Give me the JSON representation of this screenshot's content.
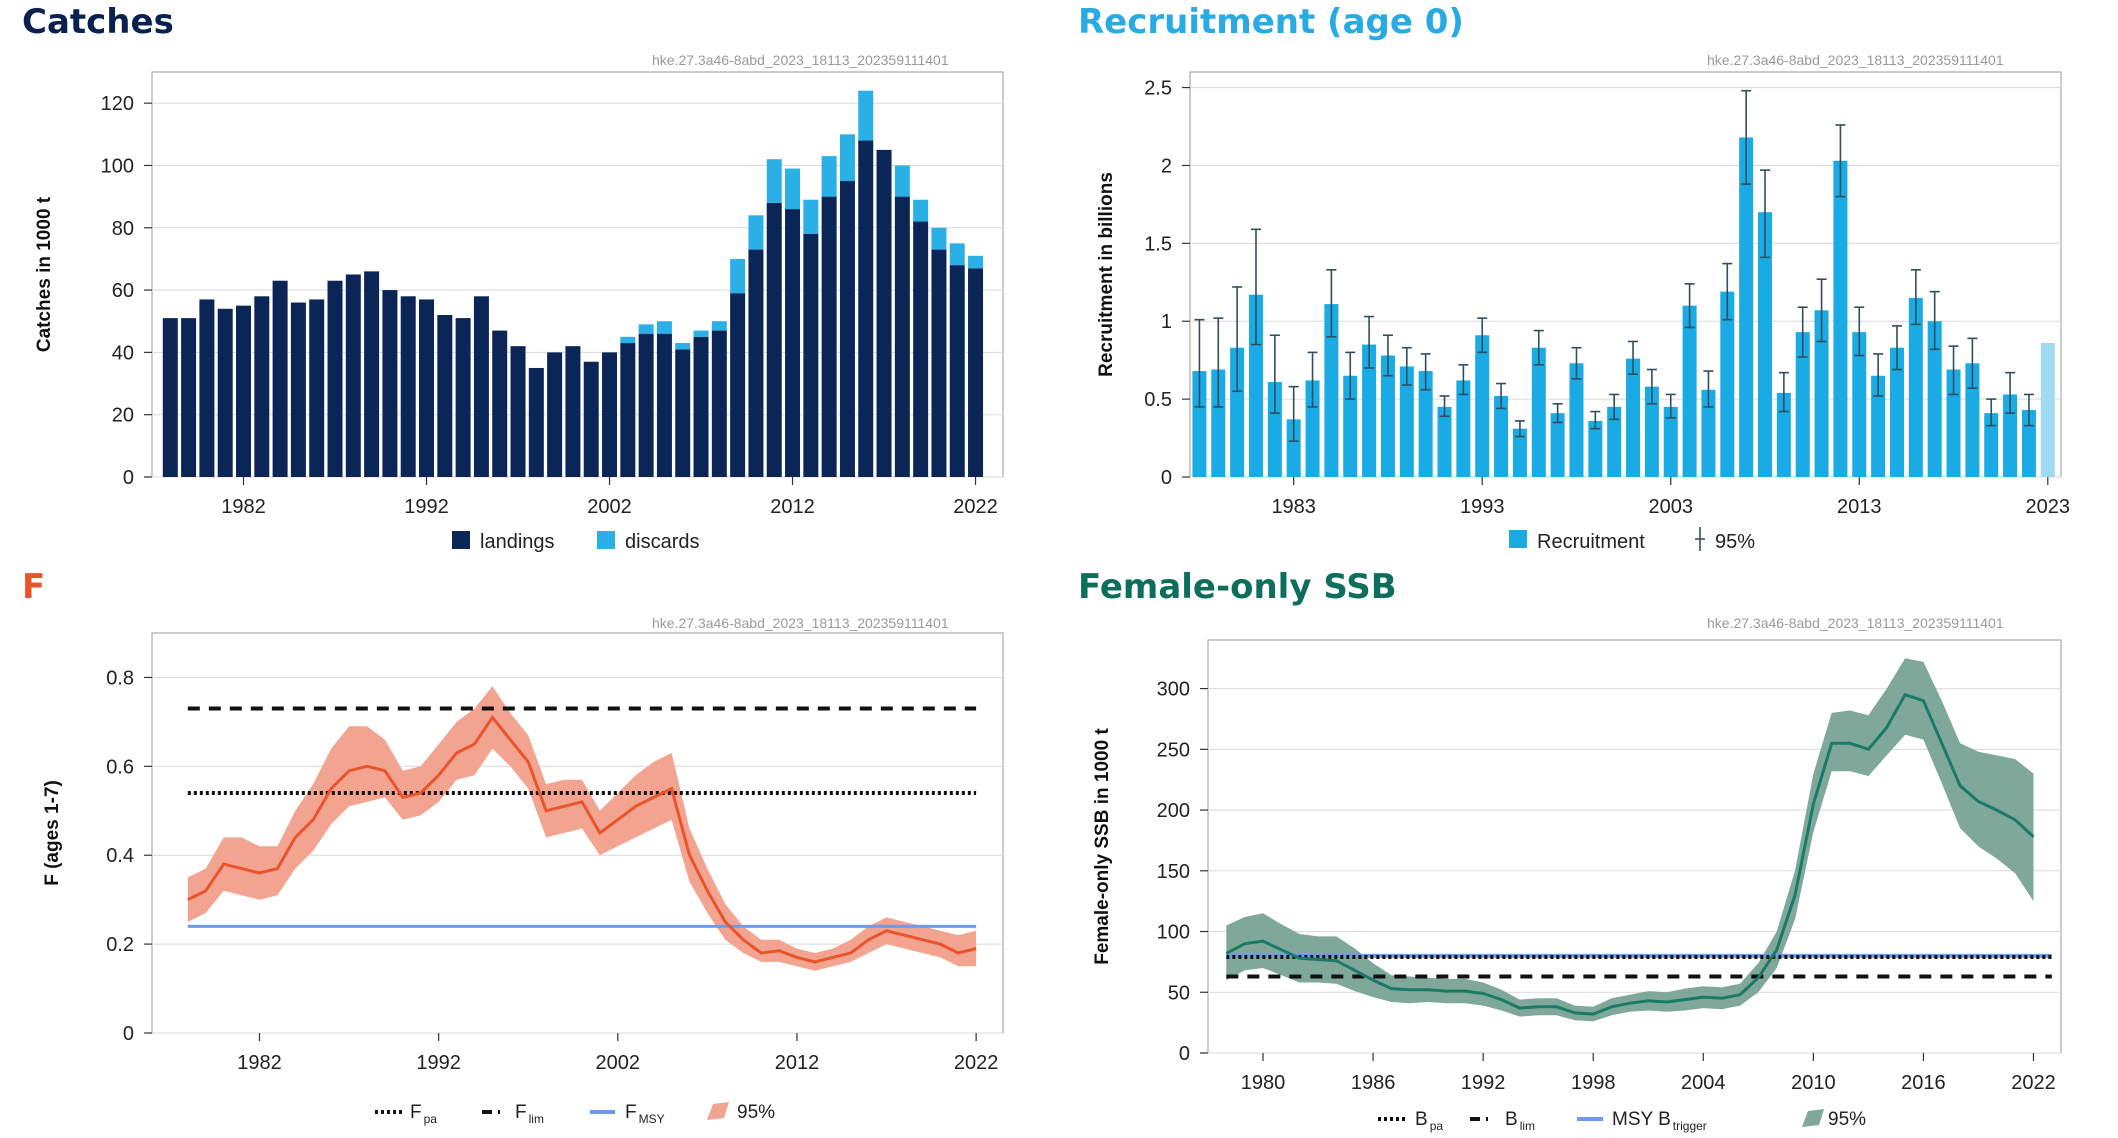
{
  "colors": {
    "catches_title": "#0a2150",
    "recruit_title": "#2aaae2",
    "f_title": "#e8542c",
    "ssb_title": "#0d6e5e",
    "landings": "#0b2556",
    "discards": "#2ab0e6",
    "recruit_bar": "#1aaae4",
    "recruit_last": "#9fd9f2",
    "f_line": "#e8542c",
    "f_band": "#f2a490",
    "ssb_line": "#1a7a66",
    "ssb_band": "#7fa89a",
    "msy": "#6e9be8",
    "ref_black": "#111111"
  },
  "chart_data": [
    {
      "id": "catches",
      "type": "bar",
      "title": "Catches",
      "code": "hke.27.3a46-8abd_2023_18113_202359111401",
      "ylabel": "Catches in 1000 t",
      "ylim": [
        0,
        130
      ],
      "xlim": [
        1977,
        2023.5
      ],
      "yticks": [
        0,
        20,
        40,
        60,
        80,
        100,
        120
      ],
      "xticks": [
        1982,
        1992,
        2002,
        2012,
        2022
      ],
      "years": [
        1978,
        1979,
        1980,
        1981,
        1982,
        1983,
        1984,
        1985,
        1986,
        1987,
        1988,
        1989,
        1990,
        1991,
        1992,
        1993,
        1994,
        1995,
        1996,
        1997,
        1998,
        1999,
        2000,
        2001,
        2002,
        2003,
        2004,
        2005,
        2006,
        2007,
        2008,
        2009,
        2010,
        2011,
        2012,
        2013,
        2014,
        2015,
        2016,
        2017,
        2018,
        2019,
        2020,
        2021,
        2022
      ],
      "series": [
        {
          "name": "landings",
          "values": [
            51,
            51,
            57,
            54,
            55,
            58,
            63,
            56,
            57,
            63,
            65,
            66,
            60,
            58,
            57,
            52,
            51,
            58,
            47,
            42,
            35,
            40,
            42,
            37,
            40,
            43,
            46,
            46,
            41,
            45,
            47,
            59,
            73,
            88,
            86,
            78,
            90,
            95,
            108,
            105,
            90,
            82,
            73,
            68,
            67
          ]
        },
        {
          "name": "discards",
          "values": [
            0,
            0,
            0,
            0,
            0,
            0,
            0,
            0,
            0,
            0,
            0,
            0,
            0,
            0,
            0,
            0,
            0,
            0,
            0,
            0,
            0,
            0,
            0,
            0,
            0,
            2,
            3,
            4,
            2,
            2,
            3,
            11,
            11,
            14,
            13,
            11,
            13,
            15,
            16,
            0,
            10,
            7,
            7,
            7,
            4
          ]
        }
      ],
      "legend": [
        {
          "label": "landings"
        },
        {
          "label": "discards"
        }
      ]
    },
    {
      "id": "recruitment",
      "type": "bar",
      "title": "Recruitment (age 0)",
      "code": "hke.27.3a46-8abd_2023_18113_202359111401",
      "ylabel": "Recruitment in billions",
      "ylim": [
        0,
        2.6
      ],
      "xlim": [
        1977.5,
        2023.7
      ],
      "yticks": [
        0,
        0.5,
        1,
        1.5,
        2,
        2.5
      ],
      "ytick_labels": [
        "0",
        "0.5",
        "1",
        "1.5",
        "2",
        "2.5"
      ],
      "xticks": [
        1983,
        1993,
        2003,
        2013,
        2023
      ],
      "years": [
        1978,
        1979,
        1980,
        1981,
        1982,
        1983,
        1984,
        1985,
        1986,
        1987,
        1988,
        1989,
        1990,
        1991,
        1992,
        1993,
        1994,
        1995,
        1996,
        1997,
        1998,
        1999,
        2000,
        2001,
        2002,
        2003,
        2004,
        2005,
        2006,
        2007,
        2008,
        2009,
        2010,
        2011,
        2012,
        2013,
        2014,
        2015,
        2016,
        2017,
        2018,
        2019,
        2020,
        2021,
        2022,
        2023
      ],
      "values": [
        0.68,
        0.69,
        0.83,
        1.17,
        0.61,
        0.37,
        0.62,
        1.11,
        0.65,
        0.85,
        0.78,
        0.71,
        0.68,
        0.45,
        0.62,
        0.91,
        0.52,
        0.31,
        0.83,
        0.41,
        0.73,
        0.36,
        0.45,
        0.76,
        0.58,
        0.45,
        1.1,
        0.56,
        1.19,
        2.18,
        1.7,
        0.54,
        0.93,
        1.07,
        2.03,
        0.93,
        0.65,
        0.83,
        1.15,
        1.0,
        0.69,
        0.73,
        0.41,
        0.53,
        0.43,
        0.86
      ],
      "lower": [
        0.45,
        0.45,
        0.55,
        0.85,
        0.41,
        0.23,
        0.45,
        0.9,
        0.5,
        0.7,
        0.65,
        0.59,
        0.56,
        0.39,
        0.53,
        0.8,
        0.44,
        0.26,
        0.72,
        0.35,
        0.63,
        0.31,
        0.37,
        0.66,
        0.47,
        0.38,
        0.96,
        0.45,
        1.01,
        1.88,
        1.41,
        0.42,
        0.77,
        0.87,
        1.8,
        0.78,
        0.52,
        0.69,
        0.98,
        0.82,
        0.53,
        0.57,
        0.33,
        0.41,
        0.33,
        null
      ],
      "upper": [
        1.01,
        1.02,
        1.22,
        1.59,
        0.91,
        0.58,
        0.8,
        1.33,
        0.8,
        1.03,
        0.91,
        0.83,
        0.79,
        0.52,
        0.72,
        1.02,
        0.6,
        0.36,
        0.94,
        0.47,
        0.83,
        0.42,
        0.53,
        0.87,
        0.69,
        0.53,
        1.24,
        0.68,
        1.37,
        2.48,
        1.97,
        0.67,
        1.09,
        1.27,
        2.26,
        1.09,
        0.79,
        0.97,
        1.33,
        1.19,
        0.84,
        0.89,
        0.5,
        0.67,
        0.53,
        null
      ],
      "legend": [
        {
          "label": "Recruitment"
        },
        {
          "label": "95%"
        }
      ]
    },
    {
      "id": "f",
      "type": "line",
      "title": "F",
      "code": "hke.27.3a46-8abd_2023_18113_202359111401",
      "ylabel": "F (ages 1-7)",
      "ylim": [
        0,
        0.9
      ],
      "xlim": [
        1976,
        2023.5
      ],
      "yticks": [
        0,
        0.2,
        0.4,
        0.6,
        0.8
      ],
      "ytick_labels": [
        "0",
        "0.2",
        "0.4",
        "0.6",
        "0.8"
      ],
      "xticks": [
        1982,
        1992,
        2002,
        2012,
        2022
      ],
      "years": [
        1978,
        1979,
        1980,
        1981,
        1982,
        1983,
        1984,
        1985,
        1986,
        1987,
        1988,
        1989,
        1990,
        1991,
        1992,
        1993,
        1994,
        1995,
        1996,
        1997,
        1998,
        1999,
        2000,
        2001,
        2002,
        2003,
        2004,
        2005,
        2006,
        2007,
        2008,
        2009,
        2010,
        2011,
        2012,
        2013,
        2014,
        2015,
        2016,
        2017,
        2018,
        2019,
        2020,
        2021,
        2022
      ],
      "values": [
        0.3,
        0.32,
        0.38,
        0.37,
        0.36,
        0.37,
        0.44,
        0.48,
        0.55,
        0.59,
        0.6,
        0.59,
        0.53,
        0.54,
        0.58,
        0.63,
        0.65,
        0.71,
        0.66,
        0.61,
        0.5,
        0.51,
        0.52,
        0.45,
        0.48,
        0.51,
        0.53,
        0.55,
        0.4,
        0.32,
        0.25,
        0.21,
        0.18,
        0.185,
        0.17,
        0.16,
        0.17,
        0.18,
        0.21,
        0.23,
        0.22,
        0.21,
        0.2,
        0.18,
        0.19
      ],
      "lower": [
        0.25,
        0.27,
        0.32,
        0.31,
        0.3,
        0.31,
        0.37,
        0.41,
        0.47,
        0.51,
        0.52,
        0.53,
        0.48,
        0.49,
        0.52,
        0.57,
        0.58,
        0.64,
        0.6,
        0.55,
        0.44,
        0.45,
        0.46,
        0.4,
        0.42,
        0.44,
        0.46,
        0.48,
        0.34,
        0.27,
        0.21,
        0.18,
        0.16,
        0.16,
        0.15,
        0.14,
        0.15,
        0.16,
        0.18,
        0.2,
        0.19,
        0.18,
        0.17,
        0.15,
        0.15
      ],
      "upper": [
        0.35,
        0.37,
        0.44,
        0.44,
        0.42,
        0.42,
        0.5,
        0.56,
        0.64,
        0.69,
        0.69,
        0.66,
        0.59,
        0.6,
        0.65,
        0.7,
        0.73,
        0.78,
        0.72,
        0.67,
        0.56,
        0.57,
        0.57,
        0.5,
        0.54,
        0.58,
        0.61,
        0.63,
        0.46,
        0.37,
        0.29,
        0.24,
        0.21,
        0.21,
        0.19,
        0.18,
        0.19,
        0.21,
        0.24,
        0.26,
        0.25,
        0.24,
        0.23,
        0.22,
        0.23
      ],
      "ref_lines": {
        "Fpa": 0.54,
        "Flim": 0.73,
        "FMSY": 0.24
      },
      "legend": [
        {
          "label": "F",
          "sub": "pa"
        },
        {
          "label": "F",
          "sub": "lim"
        },
        {
          "label": "F",
          "sub": "MSY"
        },
        {
          "label": "95%"
        }
      ]
    },
    {
      "id": "ssb",
      "type": "line",
      "title": "Female-only SSB",
      "code": "hke.27.3a46-8abd_2023_18113_202359111401",
      "ylabel": "Female-only SSB in 1000 t",
      "ylim": [
        0,
        340
      ],
      "xlim": [
        1977,
        2023.5
      ],
      "yticks": [
        0,
        50,
        100,
        150,
        200,
        250,
        300
      ],
      "xticks": [
        1980,
        1986,
        1992,
        1998,
        2004,
        2010,
        2016,
        2022
      ],
      "years": [
        1978,
        1979,
        1980,
        1981,
        1982,
        1983,
        1984,
        1985,
        1986,
        1987,
        1988,
        1989,
        1990,
        1991,
        1992,
        1993,
        1994,
        1995,
        1996,
        1997,
        1998,
        1999,
        2000,
        2001,
        2002,
        2003,
        2004,
        2005,
        2006,
        2007,
        2008,
        2009,
        2010,
        2011,
        2012,
        2013,
        2014,
        2015,
        2016,
        2017,
        2018,
        2019,
        2020,
        2021,
        2022,
        2023
      ],
      "values": [
        82,
        90,
        92,
        85,
        78,
        77,
        76,
        68,
        60,
        53,
        52,
        52,
        51,
        51,
        49,
        44,
        37,
        38,
        38,
        33,
        32,
        38,
        41,
        43,
        42,
        44,
        46,
        45,
        48,
        62,
        85,
        130,
        205,
        255,
        255,
        250,
        268,
        295,
        290,
        255,
        220,
        207,
        200,
        192,
        178,
        null
      ],
      "lower": [
        60,
        68,
        70,
        64,
        58,
        58,
        57,
        51,
        46,
        42,
        41,
        42,
        41,
        41,
        39,
        35,
        30,
        31,
        31,
        27,
        26,
        31,
        34,
        35,
        34,
        35,
        37,
        36,
        39,
        50,
        70,
        110,
        182,
        232,
        232,
        228,
        245,
        262,
        258,
        222,
        185,
        170,
        160,
        148,
        125,
        null
      ],
      "upper": [
        105,
        112,
        115,
        106,
        98,
        96,
        96,
        86,
        74,
        64,
        63,
        62,
        61,
        61,
        58,
        52,
        44,
        45,
        45,
        39,
        38,
        45,
        48,
        51,
        50,
        53,
        55,
        54,
        57,
        74,
        100,
        150,
        230,
        280,
        282,
        278,
        300,
        325,
        322,
        290,
        255,
        248,
        245,
        242,
        230,
        null
      ],
      "ref_lines": {
        "Bpa": 79,
        "Blim": 63,
        "MSY_Btrigger": 80
      },
      "legend": [
        {
          "label": "B",
          "sub": "pa"
        },
        {
          "label": "B",
          "sub": "lim"
        },
        {
          "label": "MSY B",
          "sub": "trigger"
        },
        {
          "label": "95%"
        }
      ]
    }
  ]
}
